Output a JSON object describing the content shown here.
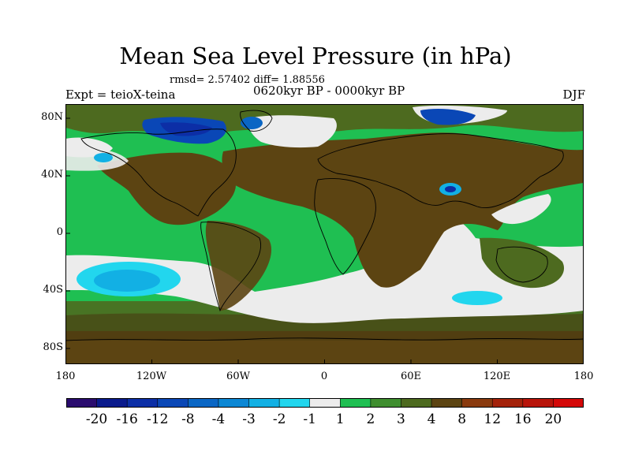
{
  "title": "Mean Sea Level Pressure (in hPa)",
  "stats_text": "rmsd= 2.57402 diff= 1.88556",
  "experiment_label": "Expt = teioX-teina",
  "period_label": "0620kyr BP - 0000kyr BP",
  "season_label": "DJF",
  "lat_labels": [
    "80N",
    "40N",
    "0",
    "40S",
    "80S"
  ],
  "lon_labels": [
    "180",
    "120W",
    "60W",
    "0",
    "60E",
    "120E",
    "180"
  ],
  "colorbar": {
    "labels": [
      "-20",
      "-16",
      "-12",
      "-8",
      "-4",
      "-3",
      "-2",
      "-1",
      "1",
      "2",
      "3",
      "4",
      "8",
      "12",
      "16",
      "20"
    ],
    "colors": [
      "#2a0c6e",
      "#0a1a8c",
      "#0c2ea6",
      "#0a47b6",
      "#0a66c4",
      "#0c87d4",
      "#12b0e4",
      "#22d6ee",
      "#ececec",
      "#1fbf52",
      "#3f8e2f",
      "#4d6a1f",
      "#5c4412",
      "#8a3a0e",
      "#a4220a",
      "#b8140a",
      "#d40808"
    ]
  },
  "chart_data": {
    "type": "heatmap",
    "title": "Mean Sea Level Pressure (in hPa)",
    "variable": "Mean Sea Level Pressure difference",
    "units": "hPa",
    "experiment": "teioX-teina",
    "period": "0620kyr BP - 0000kyr BP",
    "season": "DJF",
    "rmsd": 2.57402,
    "diff": 1.88556,
    "xlim": [
      -180,
      180
    ],
    "ylim": [
      -90,
      90
    ],
    "contour_levels": [
      -20,
      -16,
      -12,
      -8,
      -4,
      -3,
      -2,
      -1,
      1,
      2,
      3,
      4,
      8,
      12,
      16,
      20
    ]
  }
}
